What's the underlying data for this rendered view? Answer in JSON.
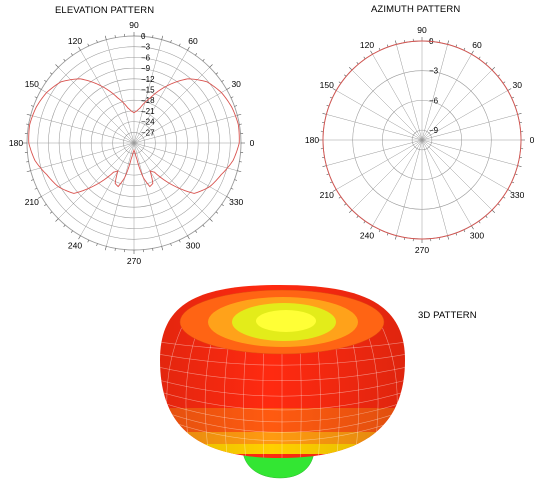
{
  "titles": {
    "elevation": "ELEVATION PATTERN",
    "azimuth": "AZIMUTH PATTERN",
    "pattern3d": "3D PATTERN"
  },
  "colors": {
    "grid": "#9a9a9a",
    "trace": "#d9534f",
    "surface_hot": "#ff2a10",
    "surface_warm": "#ff7a10",
    "surface_yellow": "#ffe000",
    "surface_green": "#33e633"
  },
  "chart_data": [
    {
      "type": "polar-line",
      "title": "ELEVATION PATTERN",
      "angle_unit": "degrees",
      "angle_ticks": [
        0,
        30,
        60,
        90,
        120,
        150,
        180,
        210,
        240,
        270,
        300,
        330
      ],
      "angle_labels": [
        "0",
        "30",
        "60",
        "90",
        "120",
        "150",
        "180",
        "210",
        "240",
        "270",
        "300",
        "330"
      ],
      "radial_range": [
        -30,
        0
      ],
      "radial_ticks": [
        0,
        -3,
        -6,
        -9,
        -12,
        -15,
        -18,
        -21,
        -24,
        -27
      ],
      "radial_labels": [
        "0",
        "−3",
        "−6",
        "−9",
        "−12",
        "−15",
        "−18",
        "−21",
        "−24",
        "−27"
      ],
      "series": [
        {
          "angle": [
            0,
            10,
            20,
            30,
            40,
            50,
            60,
            70,
            80,
            85,
            90,
            95,
            100,
            110,
            120,
            130,
            140,
            150,
            160,
            170,
            180,
            190,
            200,
            210,
            220,
            230,
            235,
            240,
            245,
            250,
            255,
            260,
            265,
            270,
            275,
            280,
            285,
            290,
            295,
            300,
            305,
            310,
            320,
            330,
            340,
            350
          ],
          "value": [
            -0.5,
            -0.3,
            -0.8,
            -1.7,
            -3.3,
            -6.5,
            -11.5,
            -16.5,
            -20,
            -21,
            -21.5,
            -21,
            -20,
            -16.5,
            -11.5,
            -6.5,
            -3.3,
            -1.7,
            -0.8,
            -0.3,
            -0.5,
            -1.8,
            -4,
            -5.5,
            -8,
            -16,
            -20,
            -21,
            -17.5,
            -17,
            -20,
            -25.5,
            -27.5,
            -28,
            -27.5,
            -25.5,
            -20,
            -17,
            -17.5,
            -21,
            -20,
            -16,
            -8,
            -5.5,
            -4,
            -1.8
          ]
        }
      ]
    },
    {
      "type": "polar-line",
      "title": "AZIMUTH PATTERN",
      "angle_unit": "degrees",
      "angle_ticks": [
        0,
        30,
        60,
        90,
        120,
        150,
        180,
        210,
        240,
        270,
        300,
        330
      ],
      "angle_labels": [
        "0",
        "30",
        "60",
        "90",
        "120",
        "150",
        "180",
        "210",
        "240",
        "270",
        "300",
        "330"
      ],
      "radial_range": [
        -10,
        0
      ],
      "radial_ticks": [
        0,
        -3,
        -6,
        -9
      ],
      "radial_labels": [
        "0",
        "−3",
        "−6",
        "−9"
      ],
      "series": [
        {
          "angle": [
            0,
            30,
            60,
            90,
            120,
            150,
            180,
            210,
            240,
            270,
            300,
            330
          ],
          "value": [
            0,
            0,
            0,
            0,
            0,
            0,
            0,
            0,
            0,
            0,
            0,
            0
          ]
        }
      ]
    }
  ]
}
